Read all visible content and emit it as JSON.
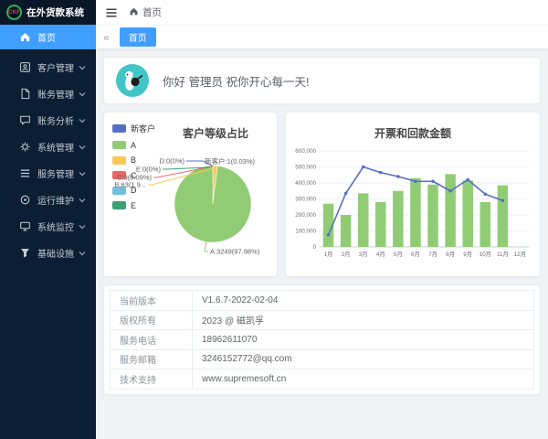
{
  "app": {
    "logo_text": "CKF",
    "title": "在外货款系统"
  },
  "colors": {
    "accent": "#409eff",
    "sidebar_bg": "#0c1e33",
    "bar_green": "#91cc75",
    "line_blue": "#5470c6"
  },
  "sidebar": {
    "items": [
      {
        "label": "首页",
        "icon": "home",
        "active": true,
        "has_submenu": false
      },
      {
        "label": "客户管理",
        "icon": "user",
        "active": false,
        "has_submenu": true
      },
      {
        "label": "账务管理",
        "icon": "document",
        "active": false,
        "has_submenu": true
      },
      {
        "label": "账务分析",
        "icon": "chat",
        "active": false,
        "has_submenu": true
      },
      {
        "label": "系统管理",
        "icon": "gear",
        "active": false,
        "has_submenu": true
      },
      {
        "label": "服务管理",
        "icon": "list",
        "active": false,
        "has_submenu": true
      },
      {
        "label": "运行维护",
        "icon": "ring",
        "active": false,
        "has_submenu": true
      },
      {
        "label": "系统监控",
        "icon": "monitor",
        "active": false,
        "has_submenu": true
      },
      {
        "label": "基础设施",
        "icon": "funnel",
        "active": false,
        "has_submenu": true
      }
    ]
  },
  "topbar": {
    "breadcrumb": "首页"
  },
  "tabs": {
    "collapse_icon": "«",
    "items": [
      {
        "label": "首页",
        "active": true
      }
    ]
  },
  "greeting": {
    "text": "你好 管理员 祝你开心每一天!"
  },
  "chart_data": [
    {
      "type": "pie",
      "title": "客户等级占比",
      "legend_position": "top-left",
      "slices": [
        {
          "name": "新客户",
          "value": 1,
          "pct": 0.03,
          "label": "新客户:1(0.03%)",
          "color": "#5470c6"
        },
        {
          "name": "A",
          "value": 3249,
          "pct": 97.98,
          "label": "A:3249(97.98%)",
          "color": "#91cc75"
        },
        {
          "name": "B",
          "value": 63,
          "pct": 1.9,
          "label": "B:63(1.9...",
          "color": "#fac858"
        },
        {
          "name": "C",
          "value": 3,
          "pct": 0.09,
          "label": "C:3(0.09%)",
          "color": "#ee6666"
        },
        {
          "name": "D",
          "value": 0,
          "pct": 0,
          "label": "D:0(0%)",
          "color": "#73c0de"
        },
        {
          "name": "E",
          "value": 0,
          "pct": 0,
          "label": "E:0(0%)",
          "color": "#3ba272"
        }
      ]
    },
    {
      "type": "bar+line",
      "title": "开票和回款金额",
      "categories": [
        "1月",
        "2月",
        "3月",
        "4月",
        "5月",
        "6月",
        "7月",
        "8月",
        "9月",
        "10月",
        "11月",
        "12月"
      ],
      "series": [
        {
          "type": "bar",
          "color": "#91cc75",
          "values": [
            270000,
            200000,
            335000,
            280000,
            350000,
            430000,
            390000,
            455000,
            415000,
            280000,
            385000,
            0
          ]
        },
        {
          "type": "line",
          "color": "#5470c6",
          "values": [
            75000,
            335000,
            500000,
            465000,
            440000,
            410000,
            410000,
            350000,
            420000,
            330000,
            290000,
            null
          ]
        }
      ],
      "ylim": [
        0,
        600000
      ],
      "ytick_step": 100000,
      "grid": true
    }
  ],
  "info_table": {
    "rows": [
      {
        "label": "当前版本",
        "value": "V1.6.7-2022-02-04"
      },
      {
        "label": "版权所有",
        "value": "2023 @ 磁凯孚"
      },
      {
        "label": "服务电话",
        "value": "18962611070"
      },
      {
        "label": "服务邮箱",
        "value": "3246152772@qq.com"
      },
      {
        "label": "技术支持",
        "value": "www.supremesoft.cn"
      }
    ]
  }
}
